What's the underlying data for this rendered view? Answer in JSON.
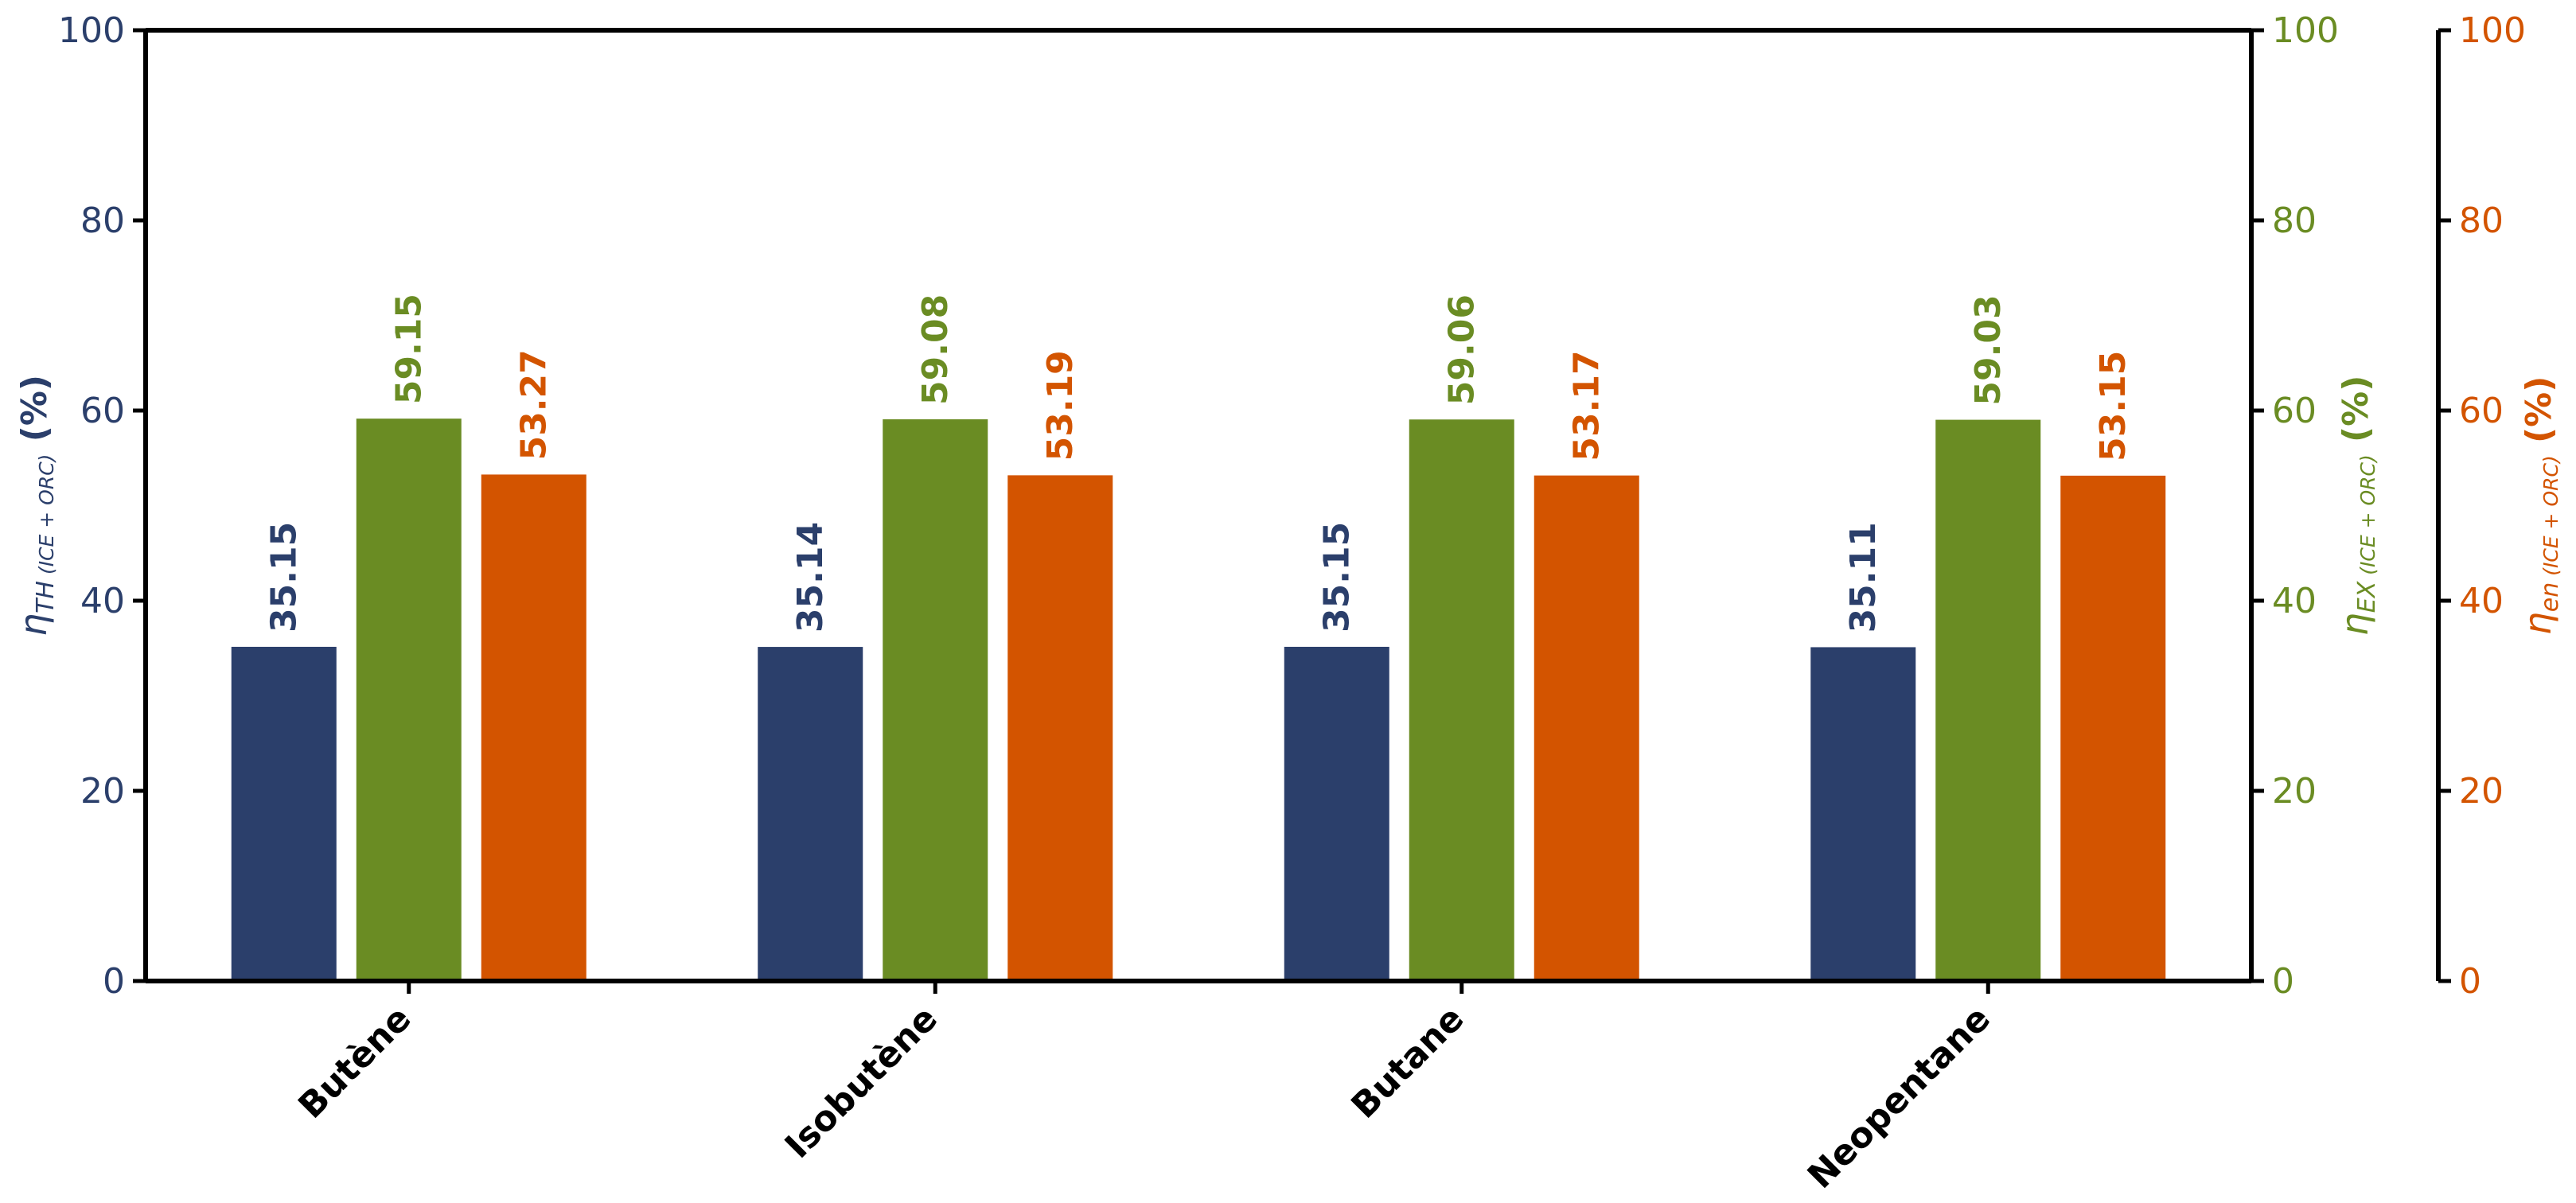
{
  "chart_data": {
    "type": "bar",
    "categories": [
      "Butène",
      "Isobutène",
      "Butane",
      "Neopentane"
    ],
    "series": [
      {
        "values": [
          35.15,
          35.14,
          35.15,
          35.11
        ],
        "color": "#2b3f6b",
        "axis": "left"
      },
      {
        "values": [
          59.15,
          59.08,
          59.06,
          59.03
        ],
        "color": "#6a8c23",
        "axis": "right1"
      },
      {
        "values": [
          53.27,
          53.19,
          53.17,
          53.15
        ],
        "color": "#d35400",
        "axis": "right2"
      }
    ],
    "data_labels": [
      [
        "35.15",
        "35.14",
        "35.15",
        "35.11"
      ],
      [
        "59.15",
        "59.08",
        "59.06",
        "59.03"
      ],
      [
        "53.27",
        "53.19",
        "53.17",
        "53.15"
      ]
    ],
    "y_axes": {
      "left": {
        "label_symbol": "η",
        "label_sub_main": "TH",
        "label_sub_paren": " (ICE + ORC)",
        "label_unit": "(%)",
        "ylim": [
          0,
          100
        ],
        "ticks": [
          "0",
          "20",
          "40",
          "60",
          "80",
          "100"
        ],
        "color": "#2b3f6b"
      },
      "right1": {
        "label_symbol": "η",
        "label_sub_main": "EX",
        "label_sub_paren": " (ICE + ORC)",
        "label_unit": "(%)",
        "ylim": [
          0,
          100
        ],
        "ticks": [
          "0",
          "20",
          "40",
          "60",
          "80",
          "100"
        ],
        "color": "#6a8c23"
      },
      "right2": {
        "label_symbol": "η",
        "label_sub_main": "en",
        "label_sub_paren": " (ICE + ORC)",
        "label_unit": "(%)",
        "ylim": [
          0,
          100
        ],
        "ticks": [
          "0",
          "20",
          "40",
          "60",
          "80",
          "100"
        ],
        "color": "#d35400"
      }
    },
    "grid": false,
    "title": "",
    "xlabel": ""
  }
}
